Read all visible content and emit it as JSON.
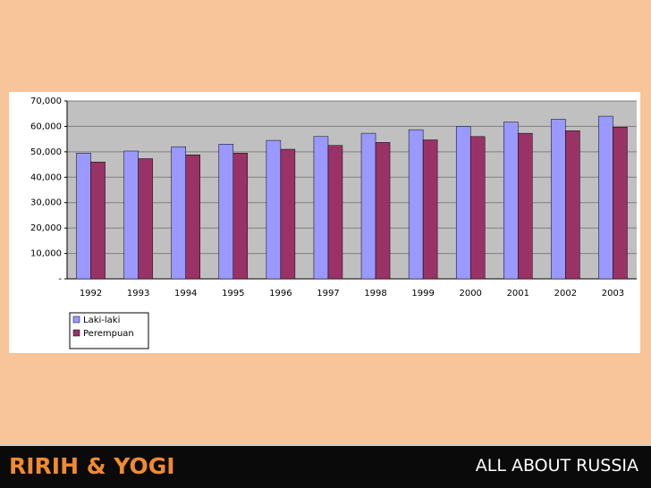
{
  "slide": {
    "footer_left": "RIRIH & YOGI",
    "footer_right": "ALL ABOUT RUSSIA"
  },
  "chart_data": {
    "type": "bar",
    "categories": [
      "1992",
      "1993",
      "1994",
      "1995",
      "1996",
      "1997",
      "1998",
      "1999",
      "2000",
      "2001",
      "2002",
      "2003"
    ],
    "series": [
      {
        "name": "Laki-laki",
        "color": "#9999ff",
        "values": [
          49500,
          50300,
          52000,
          53000,
          54500,
          56000,
          57300,
          58700,
          60000,
          61700,
          62800,
          64000
        ]
      },
      {
        "name": "Perempuan",
        "color": "#993366",
        "values": [
          46000,
          47300,
          48800,
          49500,
          51000,
          52500,
          53700,
          54700,
          56000,
          57300,
          58300,
          59700
        ]
      }
    ],
    "ylim": [
      0,
      70000
    ],
    "yticks": [
      {
        "value": 0,
        "label": "-"
      },
      {
        "value": 10000,
        "label": "10,000"
      },
      {
        "value": 20000,
        "label": "20,000"
      },
      {
        "value": 30000,
        "label": "30,000"
      },
      {
        "value": 40000,
        "label": "40,000"
      },
      {
        "value": 50000,
        "label": "50,000"
      },
      {
        "value": 60000,
        "label": "60,000"
      },
      {
        "value": 70000,
        "label": "70,000"
      }
    ],
    "grid": true,
    "legend": "bottom-left"
  }
}
